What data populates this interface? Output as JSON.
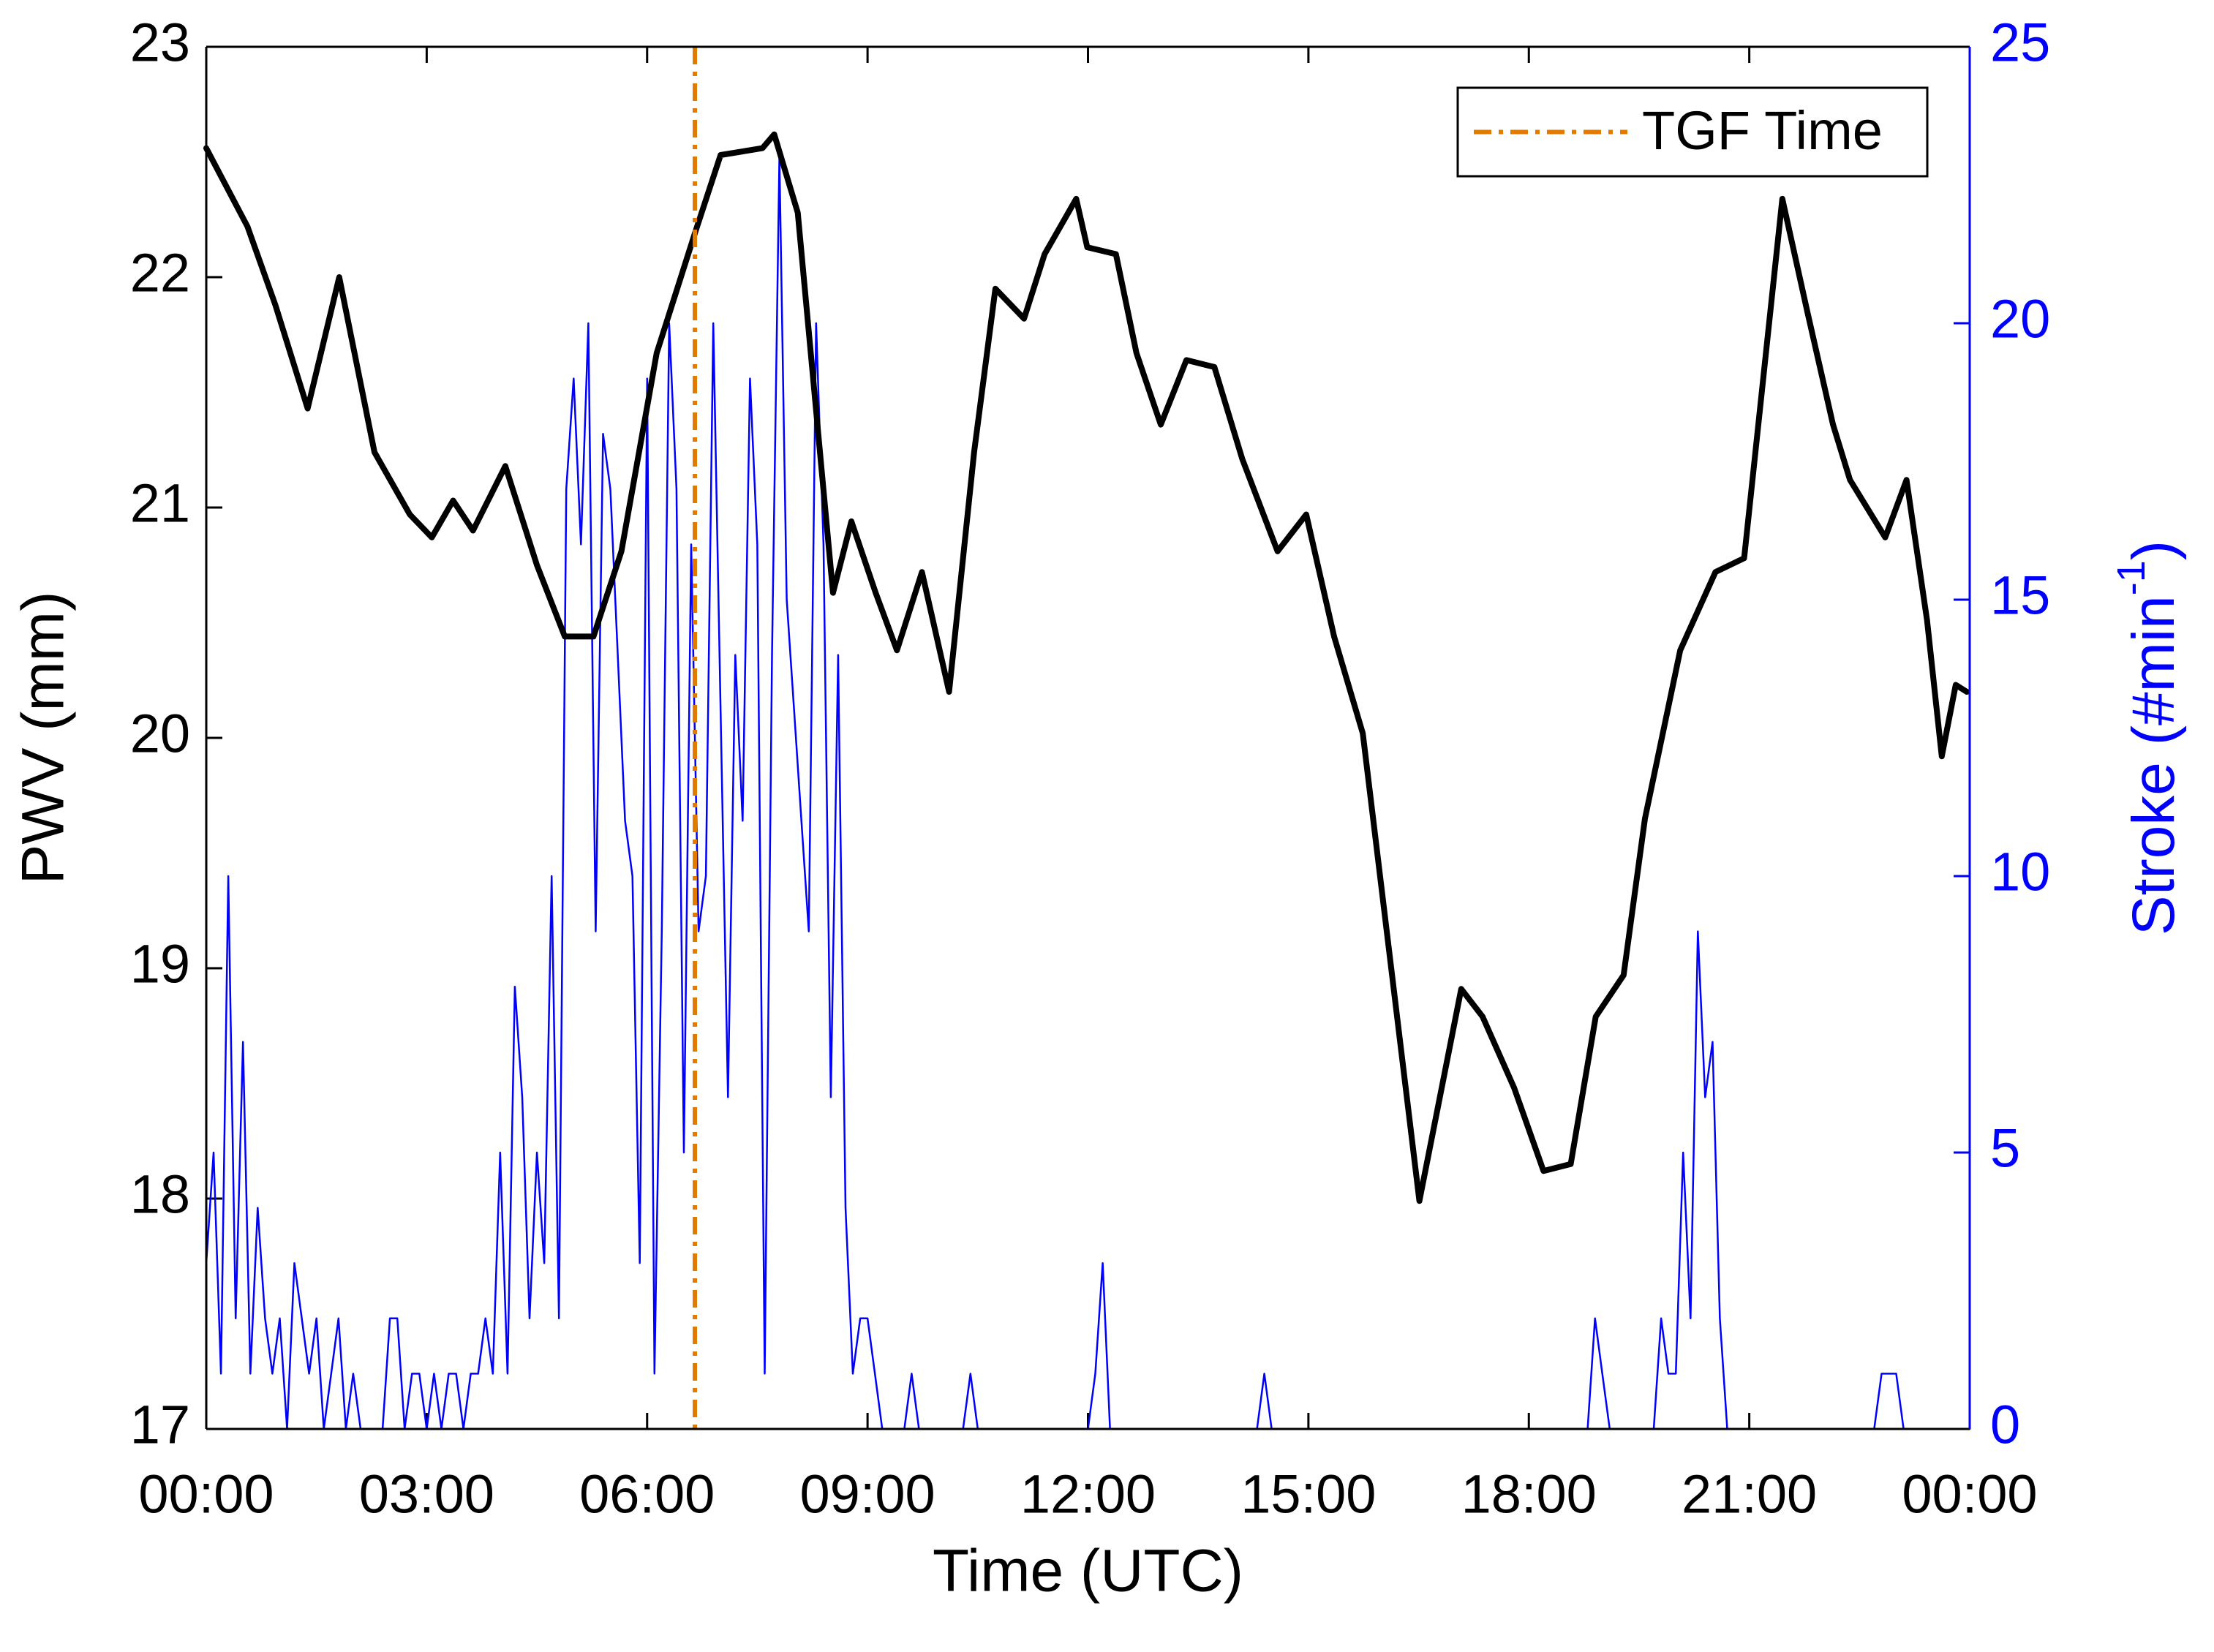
{
  "chart_data": {
    "type": "line",
    "xlabel": "Time (UTC)",
    "ylabel": "PWV (mm)",
    "y2label": [
      "Stroke (#min",
      "-1",
      ")"
    ],
    "xlim": [
      0,
      24
    ],
    "xticks": [
      {
        "value": 0,
        "label": "00:00"
      },
      {
        "value": 3,
        "label": "03:00"
      },
      {
        "value": 6,
        "label": "06:00"
      },
      {
        "value": 9,
        "label": "09:00"
      },
      {
        "value": 12,
        "label": "12:00"
      },
      {
        "value": 15,
        "label": "15:00"
      },
      {
        "value": 18,
        "label": "18:00"
      },
      {
        "value": 21,
        "label": "21:00"
      },
      {
        "value": 24,
        "label": "00:00"
      }
    ],
    "ylim": [
      17,
      23
    ],
    "yticks": [
      17,
      18,
      19,
      20,
      21,
      22,
      23
    ],
    "y2lim": [
      0,
      25
    ],
    "y2ticks": [
      0,
      5,
      10,
      15,
      20,
      25
    ],
    "y2color": "#0000ff",
    "legend": "top-right",
    "vlines": [
      {
        "name": "TGF Time",
        "x": 6.65,
        "color": "#e07b00"
      }
    ],
    "series": [
      {
        "name": "PWV",
        "color": "#000000",
        "x": [
          0,
          0.56,
          0.94,
          1.38,
          1.81,
          2.29,
          2.77,
          3.07,
          3.36,
          3.63,
          4.07,
          4.5,
          4.88,
          5.27,
          5.65,
          6.13,
          6.65,
          7.0,
          7.57,
          7.73,
          8.05,
          8.53,
          8.78,
          9.11,
          9.4,
          9.74,
          10.11,
          10.45,
          10.74,
          11.13,
          11.41,
          11.84,
          11.99,
          12.38,
          12.66,
          12.99,
          13.34,
          13.72,
          14.1,
          14.58,
          14.97,
          15.35,
          15.74,
          16.51,
          17.08,
          17.37,
          17.8,
          18.2,
          18.57,
          18.91,
          19.29,
          19.58,
          20.06,
          20.54,
          20.93,
          21.45,
          21.79,
          22.14,
          22.37,
          22.85,
          23.14,
          23.42,
          23.62,
          23.81,
          23.96
        ],
        "values": [
          22.56,
          22.22,
          21.88,
          21.43,
          22.0,
          21.24,
          20.97,
          20.87,
          21.03,
          20.9,
          21.18,
          20.75,
          20.44,
          20.44,
          20.81,
          21.67,
          22.19,
          22.53,
          22.56,
          22.62,
          22.28,
          20.63,
          20.94,
          20.63,
          20.38,
          20.72,
          20.2,
          21.24,
          21.95,
          21.82,
          22.1,
          22.34,
          22.13,
          22.1,
          21.67,
          21.36,
          21.64,
          21.61,
          21.21,
          20.81,
          20.97,
          20.44,
          20.02,
          17.99,
          18.91,
          18.79,
          18.48,
          18.12,
          18.15,
          18.79,
          18.97,
          19.65,
          20.38,
          20.72,
          20.78,
          22.34,
          21.85,
          21.36,
          21.12,
          20.87,
          21.12,
          20.51,
          19.92,
          20.23,
          20.2
        ]
      },
      {
        "name": "Stroke",
        "color": "#0000ff",
        "axis": "y2",
        "x": [
          0,
          0.1,
          0.2,
          0.3,
          0.4,
          0.5,
          0.6,
          0.7,
          0.8,
          0.9,
          1,
          1.1,
          1.2,
          1.3,
          1.4,
          1.5,
          1.6,
          1.7,
          1.8,
          1.9,
          2,
          2.1,
          2.2,
          2.3,
          2.4,
          2.5,
          2.6,
          2.7,
          2.8,
          2.9,
          3,
          3.1,
          3.2,
          3.3,
          3.4,
          3.5,
          3.6,
          3.7,
          3.8,
          3.9,
          4,
          4.1,
          4.2,
          4.3,
          4.4,
          4.5,
          4.6,
          4.7,
          4.8,
          4.9,
          5,
          5.1,
          5.2,
          5.3,
          5.4,
          5.5,
          5.6,
          5.7,
          5.8,
          5.9,
          6,
          6.1,
          6.2,
          6.3,
          6.4,
          6.5,
          6.6,
          6.7,
          6.8,
          6.9,
          7,
          7.1,
          7.2,
          7.3,
          7.4,
          7.5,
          7.6,
          7.7,
          7.8,
          7.9,
          8,
          8.1,
          8.2,
          8.3,
          8.4,
          8.5,
          8.6,
          8.7,
          8.8,
          8.9,
          9,
          9.1,
          9.2,
          9.3,
          9.4,
          9.5,
          9.6,
          9.7,
          9.8,
          9.9,
          10,
          10.1,
          10.2,
          10.3,
          10.4,
          10.5,
          10.6,
          10.7,
          10.8,
          10.9,
          11,
          11.1,
          11.2,
          11.3,
          11.4,
          11.5,
          11.6,
          11.7,
          11.8,
          11.9,
          12,
          12.1,
          12.2,
          12.3,
          12.4,
          12.5,
          12.6,
          12.7,
          12.8,
          12.9,
          13,
          13.1,
          13.2,
          13.3,
          13.4,
          13.5,
          13.6,
          13.7,
          13.8,
          13.9,
          14,
          14.1,
          14.2,
          14.3,
          14.4,
          14.5,
          14.6,
          14.7,
          14.8,
          14.9,
          15,
          15.1,
          15.2,
          15.3,
          15.4,
          15.5,
          15.6,
          15.7,
          15.8,
          15.9,
          16,
          16.1,
          16.2,
          16.3,
          16.4,
          16.5,
          16.6,
          16.7,
          16.8,
          16.9,
          17,
          17.1,
          17.2,
          17.3,
          17.4,
          17.5,
          17.6,
          17.7,
          17.8,
          17.9,
          18,
          18.1,
          18.2,
          18.3,
          18.4,
          18.5,
          18.6,
          18.7,
          18.8,
          18.9,
          19,
          19.1,
          19.2,
          19.3,
          19.4,
          19.5,
          19.6,
          19.7,
          19.8,
          19.9,
          20,
          20.1,
          20.2,
          20.3,
          20.4,
          20.5,
          20.6,
          20.7,
          20.8,
          20.9,
          21,
          21.1,
          21.2,
          21.3,
          21.4,
          21.5,
          21.6,
          21.7,
          21.8,
          21.9,
          22,
          22.1,
          22.2,
          22.3,
          22.4,
          22.5,
          22.6,
          22.7,
          22.8,
          22.9,
          23,
          23.1,
          23.2,
          23.3,
          23.4,
          23.5,
          23.6,
          23.7,
          23.8,
          23.9,
          24
        ],
        "values": [
          3,
          5,
          1,
          10,
          2,
          7,
          1,
          4,
          2,
          1,
          2,
          0,
          3,
          2,
          1,
          2,
          0,
          1,
          2,
          0,
          1,
          0,
          0,
          0,
          0,
          2,
          2,
          0,
          1,
          1,
          0,
          1,
          0,
          1,
          1,
          0,
          1,
          1,
          2,
          1,
          5,
          1,
          8,
          6,
          2,
          5,
          3,
          10,
          2,
          17,
          19,
          16,
          20,
          9,
          18,
          17,
          14,
          11,
          10,
          3,
          19,
          1,
          9,
          20,
          17,
          5,
          16,
          9,
          10,
          20,
          13,
          6,
          14,
          11,
          19,
          16,
          1,
          14,
          23,
          15,
          13,
          11,
          9,
          20,
          16,
          6,
          14,
          4,
          1,
          2,
          2,
          1,
          0,
          0,
          0,
          0,
          1,
          0,
          0,
          0,
          0,
          0,
          0,
          0,
          1,
          0,
          0,
          0,
          0,
          0,
          0,
          0,
          0,
          0,
          0,
          0,
          0,
          0,
          0,
          0,
          0,
          1,
          3,
          0,
          0,
          0,
          0,
          0,
          0,
          0,
          0,
          0,
          0,
          0,
          0,
          0,
          0,
          0,
          0,
          0,
          0,
          0,
          0,
          0,
          1,
          0,
          0,
          0,
          0,
          0,
          0,
          0,
          0,
          0,
          0,
          0,
          0,
          0,
          0,
          0,
          0,
          0,
          0,
          0,
          0,
          0,
          0,
          0,
          0,
          0,
          0,
          0,
          0,
          0,
          0,
          0,
          0,
          0,
          0,
          0,
          0,
          0,
          0,
          0,
          0,
          0,
          0,
          0,
          0,
          2,
          1,
          0,
          0,
          0,
          0,
          0,
          0,
          0,
          2,
          1,
          1,
          5,
          2,
          9,
          6,
          7,
          2,
          0,
          0,
          0,
          0,
          0,
          0,
          0,
          0,
          0,
          0,
          0,
          0,
          0,
          0,
          0,
          0,
          0,
          0,
          0,
          0,
          0,
          1,
          1,
          1,
          0,
          0,
          0,
          0,
          0,
          0,
          0,
          0,
          0,
          0
        ]
      }
    ]
  }
}
